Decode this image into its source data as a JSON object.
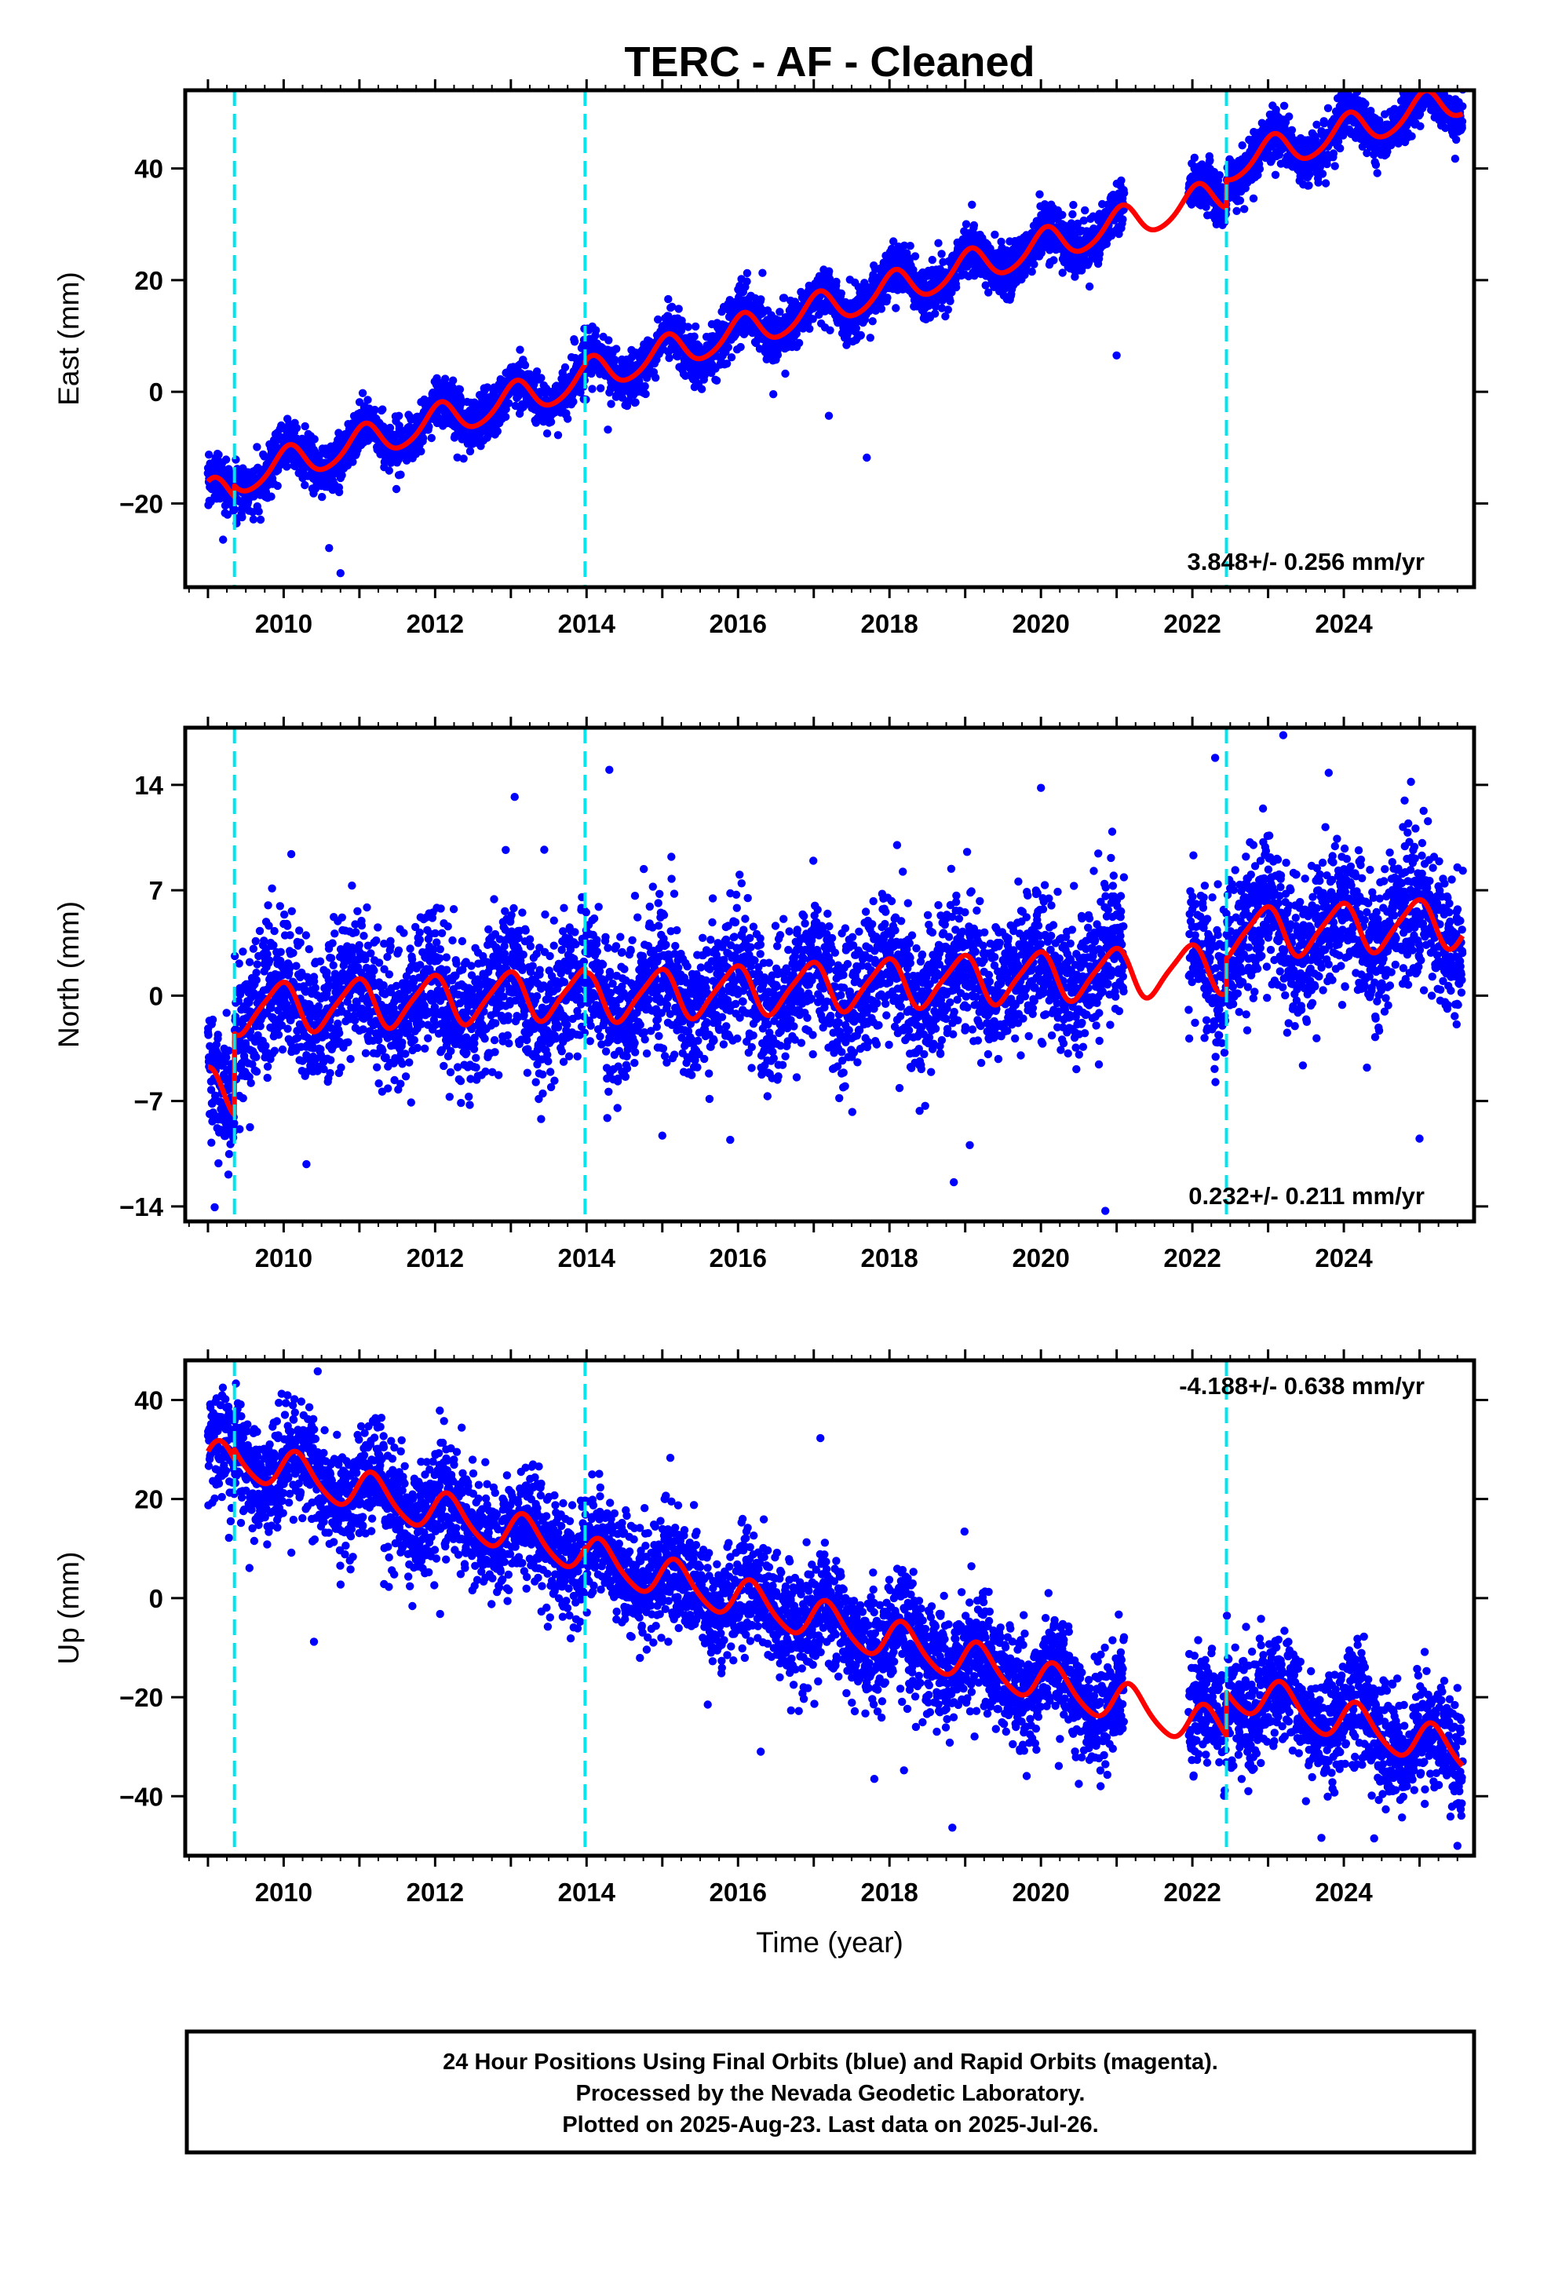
{
  "figure": {
    "title": "TERC  - AF - Cleaned",
    "footer": {
      "lines": [
        "24 Hour Positions Using Final Orbits (blue) and Rapid Orbits (magenta).",
        "Processed by the Nevada Geodetic Laboratory.",
        "Plotted on 2025-Aug-23. Last data on 2025-Jul-26."
      ]
    }
  },
  "chart_data": [
    {
      "type": "scatter",
      "component": "East",
      "ylabel": "East (mm)",
      "xlabel": "",
      "xlim": [
        2008.7,
        2025.72
      ],
      "ylim": [
        -35,
        54
      ],
      "yticks": [
        -20,
        0,
        20,
        40
      ],
      "xticks": [
        2010,
        2012,
        2014,
        2016,
        2018,
        2020,
        2022,
        2024
      ],
      "rate_label": "3.848+/- 0.256 mm/yr",
      "rate_position": "bottom-right",
      "events": [
        2009.35,
        2013.98,
        2022.45
      ],
      "colors": {
        "points": "#0000ff",
        "model": "#ff0000",
        "events": "#00e5ee"
      },
      "model": {
        "segments": [
          {
            "start": 2009.0,
            "end": 2009.35,
            "offset": -19.0
          },
          {
            "start": 2009.35,
            "end": 2013.98,
            "offset": -17.0
          },
          {
            "start": 2013.98,
            "end": 2022.45,
            "offset": -16.4
          },
          {
            "start": 2022.45,
            "end": 2025.57,
            "offset": -11.3
          }
        ],
        "ref_year": 2009.0,
        "rate": 3.848,
        "annual_amp": 3.0,
        "annual_phase": 1.2,
        "semiannual_amp": 0.4,
        "semiannual_phase": 0.3
      },
      "scatter": {
        "start": 2009.0,
        "end": 2025.57,
        "gaps": [
          [
            2021.1,
            2021.95
          ]
        ],
        "noise_sd": 2.2,
        "n_points": 5400,
        "outliers": [
          [
            2010.75,
            -32.5
          ],
          [
            2010.6,
            -28.0
          ],
          [
            2017.7,
            -11.8
          ],
          [
            2009.2,
            -26.5
          ],
          [
            2021.0,
            6.5
          ],
          [
            2017.2,
            -4.3
          ]
        ]
      }
    },
    {
      "type": "scatter",
      "component": "North",
      "ylabel": "North (mm)",
      "xlabel": "",
      "xlim": [
        2008.7,
        2025.72
      ],
      "ylim": [
        -15,
        17.8
      ],
      "yticks": [
        -14,
        -7,
        0,
        7,
        14
      ],
      "xticks": [
        2010,
        2012,
        2014,
        2016,
        2018,
        2020,
        2022,
        2024
      ],
      "rate_label": "0.232+/- 0.211 mm/yr",
      "rate_position": "bottom-right",
      "events": [
        2009.35,
        2013.98,
        2022.45
      ],
      "colors": {
        "points": "#0000ff",
        "model": "#ff0000",
        "events": "#00e5ee"
      },
      "model": {
        "segments": [
          {
            "start": 2009.0,
            "end": 2009.35,
            "offset": -6.4
          },
          {
            "start": 2009.35,
            "end": 2013.98,
            "offset": -1.0
          },
          {
            "start": 2013.98,
            "end": 2022.45,
            "offset": -1.3
          },
          {
            "start": 2022.45,
            "end": 2025.57,
            "offset": 1.0
          }
        ],
        "ref_year": 2009.0,
        "rate": 0.232,
        "annual_amp": 1.6,
        "annual_phase": 1.9,
        "semiannual_amp": 0.3,
        "semiannual_phase": 0.5
      },
      "scatter": {
        "start": 2009.0,
        "end": 2025.57,
        "gaps": [
          [
            2021.1,
            2021.95
          ]
        ],
        "noise_sd": 2.3,
        "n_points": 5400,
        "outliers": [
          [
            2023.2,
            17.3
          ],
          [
            2022.3,
            15.8
          ],
          [
            2014.3,
            15.0
          ],
          [
            2013.05,
            13.2
          ],
          [
            2020.0,
            13.8
          ],
          [
            2018.1,
            10.0
          ],
          [
            2010.1,
            9.4
          ],
          [
            2018.85,
            -12.4
          ],
          [
            2020.85,
            -14.3
          ],
          [
            2010.3,
            -11.2
          ],
          [
            2015.0,
            -9.3
          ],
          [
            2013.4,
            -8.2
          ],
          [
            2025.0,
            -9.5
          ],
          [
            2023.8,
            14.8
          ]
        ]
      }
    },
    {
      "type": "scatter",
      "component": "Up",
      "ylabel": "Up (mm)",
      "xlabel": "Time (year)",
      "xlim": [
        2008.7,
        2025.72
      ],
      "ylim": [
        -52,
        48
      ],
      "yticks": [
        -40,
        -20,
        0,
        20,
        40
      ],
      "xticks": [
        2010,
        2012,
        2014,
        2016,
        2018,
        2020,
        2022,
        2024
      ],
      "rate_label": "-4.188+/- 0.638 mm/yr",
      "rate_position": "top-right",
      "events": [
        2009.35,
        2013.98,
        2022.45
      ],
      "colors": {
        "points": "#0000ff",
        "model": "#ff0000",
        "events": "#00e5ee"
      },
      "model": {
        "segments": [
          {
            "start": 2009.0,
            "end": 2009.35,
            "offset": 28.0
          },
          {
            "start": 2009.35,
            "end": 2013.98,
            "offset": 30.0
          },
          {
            "start": 2013.98,
            "end": 2022.45,
            "offset": 29.2
          },
          {
            "start": 2022.45,
            "end": 2025.57,
            "offset": 38.0
          }
        ],
        "ref_year": 2009.0,
        "rate": -4.188,
        "annual_amp": 4.0,
        "annual_phase": 0.4,
        "semiannual_amp": 0.6,
        "semiannual_phase": 0.1
      },
      "scatter": {
        "start": 2009.0,
        "end": 2025.57,
        "gaps": [
          [
            2021.1,
            2021.95
          ]
        ],
        "noise_sd": 5.6,
        "n_points": 5400,
        "outliers": [
          [
            2010.4,
            -8.8
          ],
          [
            2010.45,
            45.8
          ],
          [
            2016.3,
            -31.0
          ],
          [
            2017.8,
            -36.5
          ],
          [
            2024.4,
            -48.5
          ],
          [
            2025.5,
            -50.0
          ],
          [
            2011.7,
            -1.6
          ],
          [
            2015.6,
            -21.5
          ],
          [
            2020.5,
            -37.5
          ],
          [
            2023.5,
            -41.0
          ]
        ]
      }
    }
  ]
}
